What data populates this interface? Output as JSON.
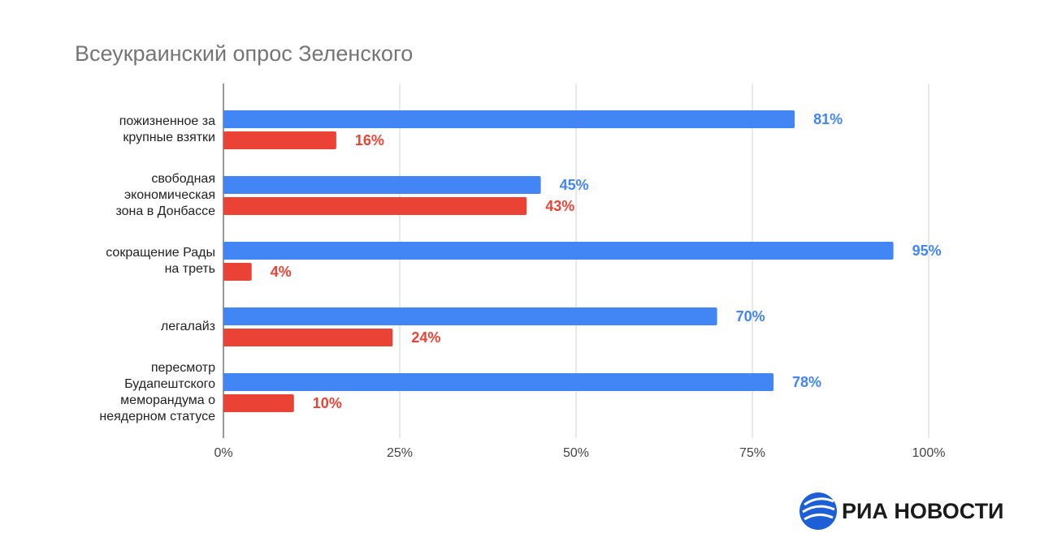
{
  "chart_data": {
    "type": "bar",
    "orientation": "horizontal",
    "title": "Всеукраинский опрос Зеленского",
    "categories": [
      "пожизненное за\nкрупные взятки",
      "свободная\nэкономическая\nзона в Донбассе",
      "сокращение Рады\nна треть",
      "легалайз",
      "пересмотр\nБудапештского\nмеморандума о\nнеядерном статусе"
    ],
    "series": [
      {
        "color": "#4285f4",
        "values": [
          81,
          45,
          95,
          70,
          78
        ],
        "value_labels": [
          "81%",
          "45%",
          "95%",
          "70%",
          "78%"
        ]
      },
      {
        "color": "#ea4335",
        "values": [
          16,
          43,
          4,
          24,
          10
        ],
        "value_labels": [
          "16%",
          "43%",
          "4%",
          "24%",
          "10%"
        ]
      }
    ],
    "xlim": [
      0,
      100
    ],
    "xticks": [
      {
        "value": 0,
        "label": "0%"
      },
      {
        "value": 25,
        "label": "25%"
      },
      {
        "value": 50,
        "label": "50%"
      },
      {
        "value": 75,
        "label": "75%"
      },
      {
        "value": 100,
        "label": "100%"
      }
    ],
    "grid": true
  },
  "logo": "РИА НОВОСТИ"
}
